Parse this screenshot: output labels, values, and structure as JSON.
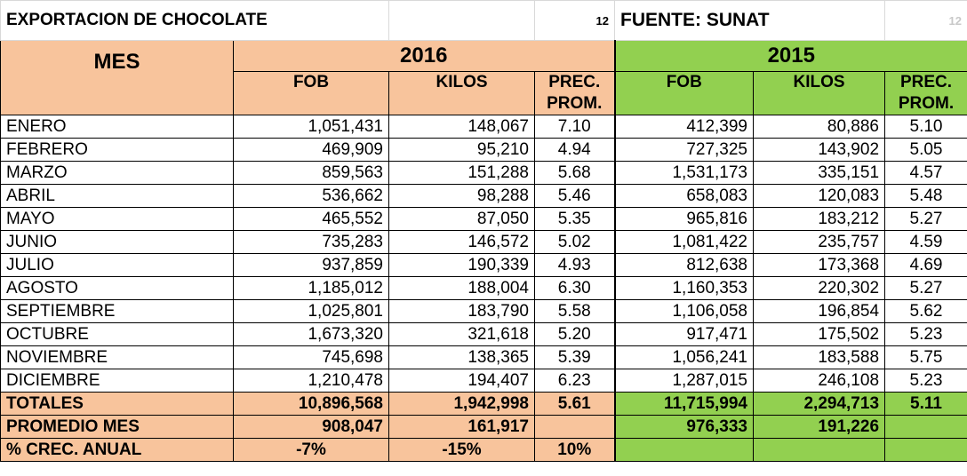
{
  "title": "EXPORTACION DE CHOCOLATE",
  "top_num_left": "12",
  "source": "FUENTE: SUNAT",
  "top_num_right": "12",
  "years": [
    "2016",
    "2015"
  ],
  "headers": {
    "mes": "MES",
    "fob": "FOB",
    "kilos": "KILOS",
    "prec_line1": "PREC.",
    "prec_line2": "PROM."
  },
  "rows": [
    {
      "mes": "ENERO",
      "fob16": "1,051,431",
      "kil16": "148,067",
      "pre16": "7.10",
      "fob15": "412,399",
      "kil15": "80,886",
      "pre15": "5.10"
    },
    {
      "mes": "FEBRERO",
      "fob16": "469,909",
      "kil16": "95,210",
      "pre16": "4.94",
      "fob15": "727,325",
      "kil15": "143,902",
      "pre15": "5.05"
    },
    {
      "mes": "MARZO",
      "fob16": "859,563",
      "kil16": "151,288",
      "pre16": "5.68",
      "fob15": "1,531,173",
      "kil15": "335,151",
      "pre15": "4.57"
    },
    {
      "mes": "ABRIL",
      "fob16": "536,662",
      "kil16": "98,288",
      "pre16": "5.46",
      "fob15": "658,083",
      "kil15": "120,083",
      "pre15": "5.48"
    },
    {
      "mes": "MAYO",
      "fob16": "465,552",
      "kil16": "87,050",
      "pre16": "5.35",
      "fob15": "965,816",
      "kil15": "183,212",
      "pre15": "5.27"
    },
    {
      "mes": "JUNIO",
      "fob16": "735,283",
      "kil16": "146,572",
      "pre16": "5.02",
      "fob15": "1,081,422",
      "kil15": "235,757",
      "pre15": "4.59"
    },
    {
      "mes": "JULIO",
      "fob16": "937,859",
      "kil16": "190,339",
      "pre16": "4.93",
      "fob15": "812,638",
      "kil15": "173,368",
      "pre15": "4.69"
    },
    {
      "mes": "AGOSTO",
      "fob16": "1,185,012",
      "kil16": "188,004",
      "pre16": "6.30",
      "fob15": "1,160,353",
      "kil15": "220,302",
      "pre15": "5.27"
    },
    {
      "mes": "SEPTIEMBRE",
      "fob16": "1,025,801",
      "kil16": "183,790",
      "pre16": "5.58",
      "fob15": "1,106,058",
      "kil15": "196,854",
      "pre15": "5.62"
    },
    {
      "mes": "OCTUBRE",
      "fob16": "1,673,320",
      "kil16": "321,618",
      "pre16": "5.20",
      "fob15": "917,471",
      "kil15": "175,502",
      "pre15": "5.23"
    },
    {
      "mes": "NOVIEMBRE",
      "fob16": "745,698",
      "kil16": "138,365",
      "pre16": "5.39",
      "fob15": "1,056,241",
      "kil15": "183,588",
      "pre15": "5.75"
    },
    {
      "mes": "DICIEMBRE",
      "fob16": "1,210,478",
      "kil16": "194,407",
      "pre16": "6.23",
      "fob15": "1,287,015",
      "kil15": "246,108",
      "pre15": "5.23"
    }
  ],
  "totales": {
    "label": "TOTALES",
    "fob16": "10,896,568",
    "kil16": "1,942,998",
    "pre16": "5.61",
    "fob15": "11,715,994",
    "kil15": "2,294,713",
    "pre15": "5.11"
  },
  "promedio": {
    "label": "PROMEDIO MES",
    "fob16": "908,047",
    "kil16": "161,917",
    "pre16": "",
    "fob15": "976,333",
    "kil15": "191,226",
    "pre15": ""
  },
  "crec": {
    "label": "% CREC. ANUAL",
    "fob16": "-7%",
    "kil16": "-15%",
    "pre16": "10%"
  },
  "colors": {
    "orange": "#f8c49c",
    "green": "#92d050"
  }
}
